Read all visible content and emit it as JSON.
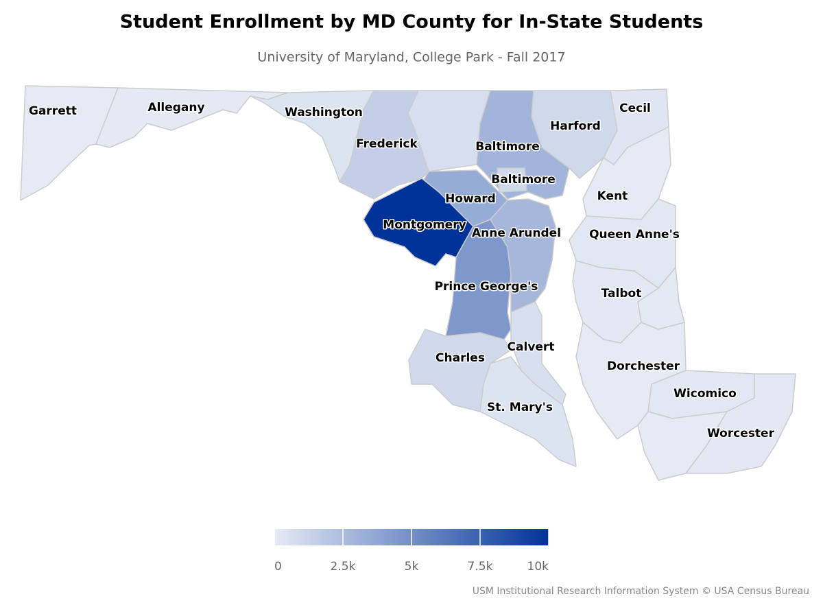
{
  "chart_data": {
    "type": "choropleth",
    "title": "Student Enrollment by MD County for In-State Students",
    "subtitle": "University of Maryland, College Park - Fall 2017",
    "credits": "USM Institutional Research Information System © USA Census Bureau",
    "min_color": "#e6ebf5",
    "max_color": "#003399",
    "colorlim": [
      0,
      10000
    ],
    "colorticks": [
      0,
      {
        "value": 2500,
        "label": "2.5k"
      },
      {
        "value": 5000,
        "label": "5k"
      },
      {
        "value": 7500,
        "label": "7.5k"
      },
      {
        "value": 10000,
        "label": "10k"
      }
    ],
    "regions": [
      {
        "name": "Garrett",
        "value": 50
      },
      {
        "name": "Allegany",
        "value": 100
      },
      {
        "name": "Washington",
        "value": 400
      },
      {
        "name": "Frederick",
        "value": 1500
      },
      {
        "name": null,
        "value": 700
      },
      {
        "name": "Baltimore",
        "value": 3000
      },
      {
        "name": "Baltimore",
        "value": 1000
      },
      {
        "name": "Harford",
        "value": 1000
      },
      {
        "name": "Cecil",
        "value": 300
      },
      {
        "name": "Howard",
        "value": 3500
      },
      {
        "name": "Montgomery",
        "value": 10000
      },
      {
        "name": "Prince George's",
        "value": 4500
      },
      {
        "name": "Anne Arundel",
        "value": 2800
      },
      {
        "name": "Calvert",
        "value": 600
      },
      {
        "name": "Charles",
        "value": 900
      },
      {
        "name": "St. Mary's",
        "value": 400
      },
      {
        "name": "Kent",
        "value": 50
      },
      {
        "name": "Queen Anne's",
        "value": 200
      },
      {
        "name": null,
        "value": 80
      },
      {
        "name": "Talbot",
        "value": 150
      },
      {
        "name": "Dorchester",
        "value": 60
      },
      {
        "name": "Wicomico",
        "value": 200
      },
      {
        "name": null,
        "value": 40
      },
      {
        "name": "Worcester",
        "value": 150
      }
    ]
  }
}
